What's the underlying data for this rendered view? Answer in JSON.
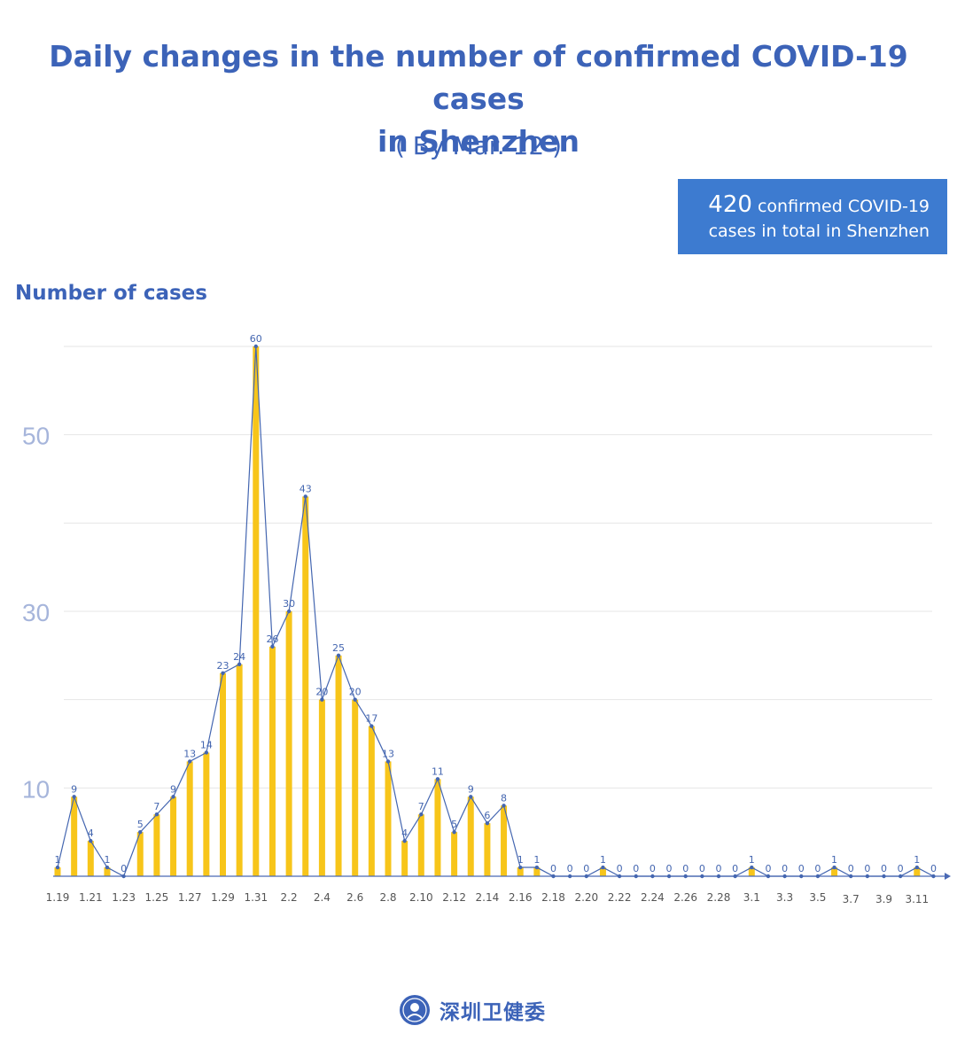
{
  "title": {
    "line1": "Daily changes in the number of confirmed COVID-19 cases",
    "line2": "in Shenzhen",
    "subtitle": "( By Mar. 12 )"
  },
  "total_box": {
    "number": "420",
    "text1": "confirmed COVID-19",
    "text2": "cases in total in Shenzhen"
  },
  "colors": {
    "bar": "#f7c51a",
    "line": "#4466b0",
    "text": "#3c63b8",
    "ytick": "#a6b5db",
    "box": "#3d7bd0"
  },
  "logo": {
    "text": "深圳卫健委",
    "icon": "seal-emblem-icon"
  },
  "chart_data": {
    "type": "bar",
    "ylabel": "Number of cases",
    "yticks": [
      10,
      30,
      50
    ],
    "ylim": [
      0,
      60
    ],
    "grid": true,
    "categories": [
      "1.19",
      "1.20",
      "1.21",
      "1.22",
      "1.23",
      "1.24",
      "1.25",
      "1.26",
      "1.27",
      "1.28",
      "1.29",
      "1.30",
      "1.31",
      "2.1",
      "2.2",
      "2.3",
      "2.4",
      "2.5",
      "2.6",
      "2.7",
      "2.8",
      "2.9",
      "2.10",
      "2.11",
      "2.12",
      "2.13",
      "2.14",
      "2.15",
      "2.16",
      "2.17",
      "2.18",
      "2.19",
      "2.20",
      "2.21",
      "2.22",
      "2.23",
      "2.24",
      "2.25",
      "2.26",
      "2.27",
      "2.28",
      "2.29",
      "3.1",
      "3.2",
      "3.3",
      "3.4",
      "3.5",
      "3.6",
      "3.7",
      "3.8",
      "3.9",
      "3.10",
      "3.11",
      "3.12"
    ],
    "tick_labels": [
      "1.19",
      "1.21",
      "1.23",
      "1.25",
      "1.27",
      "1.29",
      "1.31",
      "2.2",
      "2.4",
      "2.6",
      "2.8",
      "2.10",
      "2.12",
      "2.14",
      "2.16",
      "2.18",
      "2.20",
      "2.22",
      "2.24",
      "2.26",
      "2.28",
      "3.1",
      "3.3",
      "3.5",
      "3.7",
      "3.9",
      "3.11"
    ],
    "values": [
      1,
      9,
      4,
      1,
      0,
      5,
      7,
      9,
      13,
      14,
      23,
      24,
      60,
      26,
      30,
      43,
      20,
      25,
      20,
      17,
      13,
      4,
      7,
      11,
      5,
      9,
      6,
      8,
      1,
      1,
      0,
      0,
      0,
      1,
      0,
      0,
      0,
      0,
      0,
      0,
      0,
      0,
      1,
      0,
      0,
      0,
      0,
      1,
      0,
      0,
      0,
      0,
      1,
      0
    ]
  }
}
